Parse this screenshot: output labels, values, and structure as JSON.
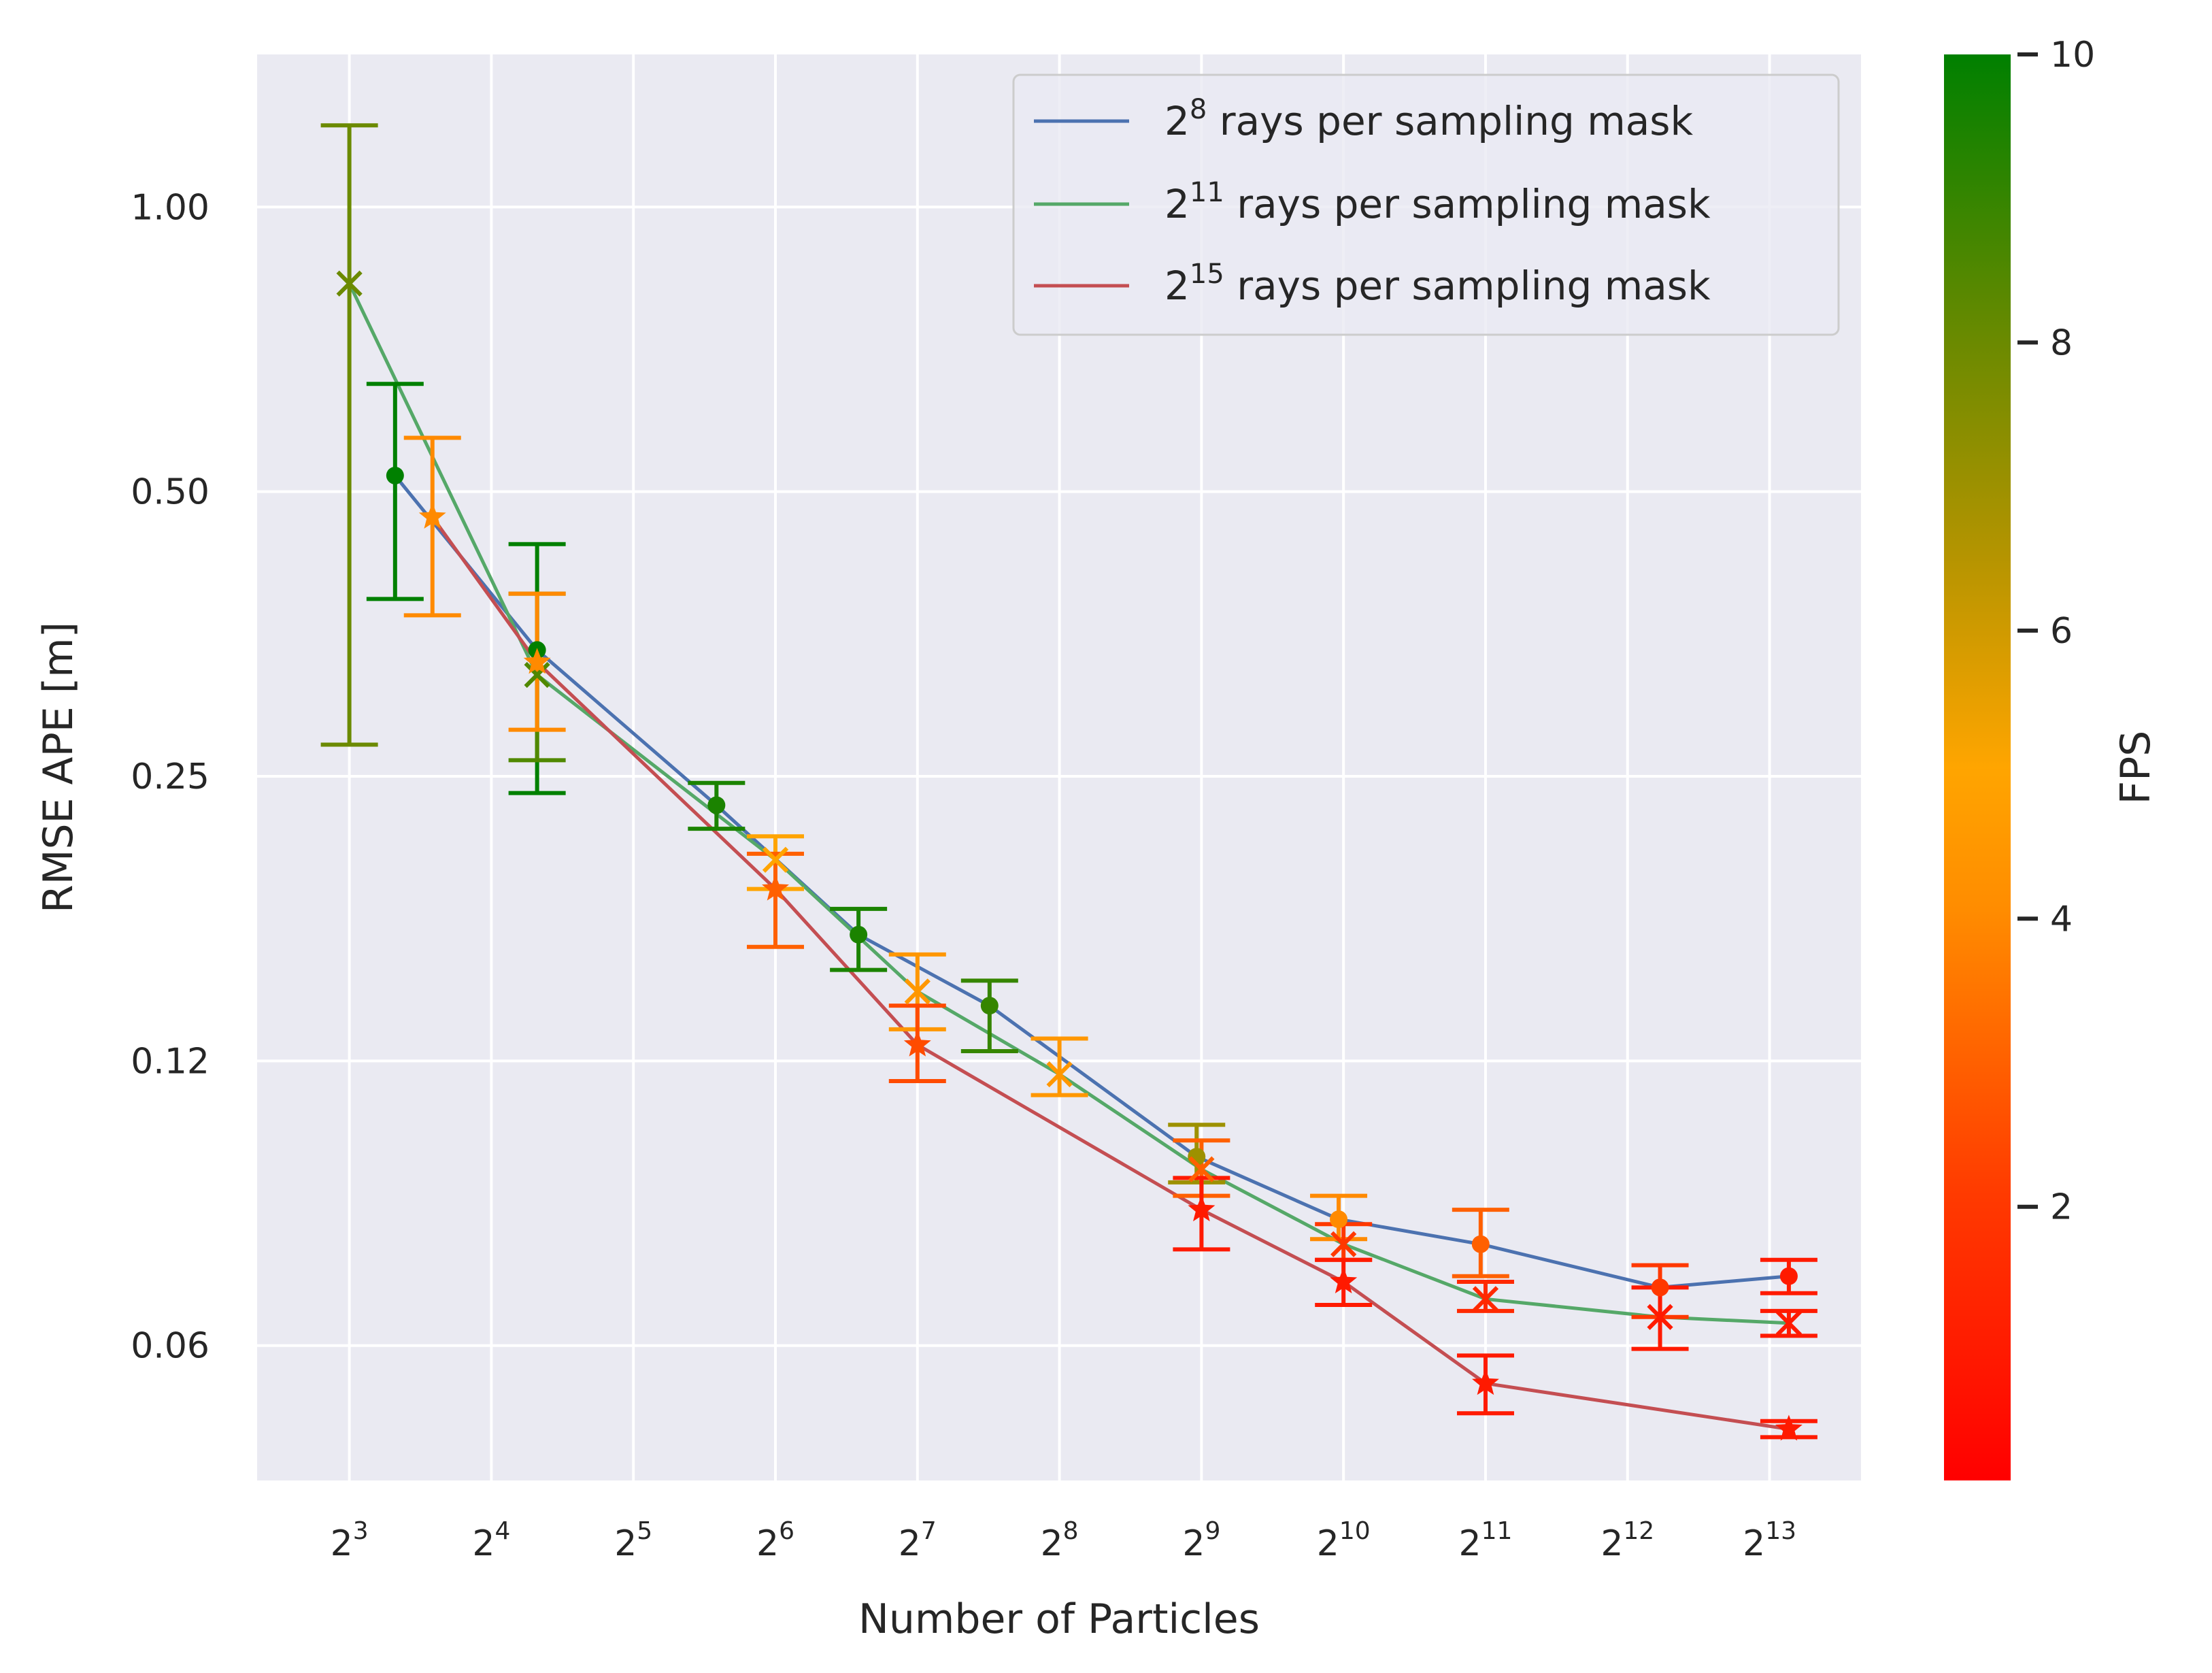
{
  "chart_data": {
    "type": "line",
    "title": "",
    "xlabel": "Number of Particles",
    "ylabel": "RMSE APE [m]",
    "x_scale": "log2",
    "y_scale": "log",
    "x_ticks": [
      {
        "base": "2",
        "exp": "3",
        "value": 8
      },
      {
        "base": "2",
        "exp": "4",
        "value": 16
      },
      {
        "base": "2",
        "exp": "5",
        "value": 32
      },
      {
        "base": "2",
        "exp": "6",
        "value": 64
      },
      {
        "base": "2",
        "exp": "7",
        "value": 128
      },
      {
        "base": "2",
        "exp": "8",
        "value": 256
      },
      {
        "base": "2",
        "exp": "9",
        "value": 512
      },
      {
        "base": "2",
        "exp": "10",
        "value": 1024
      },
      {
        "base": "2",
        "exp": "11",
        "value": 2048
      },
      {
        "base": "2",
        "exp": "12",
        "value": 4096
      },
      {
        "base": "2",
        "exp": "13",
        "value": 8192
      }
    ],
    "y_ticks": [
      {
        "label": "1.00",
        "value": 1.0
      },
      {
        "label": "0.50",
        "value": 0.5
      },
      {
        "label": "0.25",
        "value": 0.25
      },
      {
        "label": "0.12",
        "value": 0.125
      },
      {
        "label": "0.06",
        "value": 0.0625
      }
    ],
    "xlim": [
      5.1,
      12800
    ],
    "ylim": [
      0.045,
      1.45
    ],
    "grid": true,
    "legend_position": "top-right",
    "series": [
      {
        "name_base": "2",
        "name_exp": "8",
        "name_suffix": "  rays per sampling mask",
        "color": "#4c72b0",
        "marker": "dot",
        "x": [
          10,
          20,
          48,
          96,
          182,
          500,
          1000,
          2000,
          4800,
          9000
        ],
        "y": [
          0.52,
          0.34,
          0.233,
          0.17,
          0.143,
          0.099,
          0.085,
          0.08,
          0.072,
          0.074
        ],
        "yerr_low": [
          0.385,
          0.24,
          0.22,
          0.156,
          0.128,
          0.093,
          0.081,
          0.074,
          0.067,
          0.071
        ],
        "yerr_high": [
          0.65,
          0.44,
          0.246,
          0.181,
          0.152,
          0.107,
          0.09,
          0.087,
          0.076,
          0.077
        ],
        "fps": [
          10,
          10,
          9.5,
          9.5,
          9,
          7,
          4,
          3,
          2,
          1
        ]
      },
      {
        "name_base": "2",
        "name_exp": "11",
        "name_suffix": " rays per sampling mask",
        "color": "#55a868",
        "marker": "x",
        "x": [
          8,
          20,
          64,
          128,
          256,
          512,
          1024,
          2048,
          4800,
          9000
        ],
        "y": [
          0.83,
          0.32,
          0.204,
          0.148,
          0.121,
          0.096,
          0.08,
          0.07,
          0.067,
          0.066
        ],
        "yerr_low": [
          0.27,
          0.26,
          0.19,
          0.135,
          0.115,
          0.09,
          0.077,
          0.068,
          0.062,
          0.064
        ],
        "yerr_high": [
          1.22,
          0.39,
          0.216,
          0.162,
          0.132,
          0.103,
          0.084,
          0.073,
          0.072,
          0.068
        ],
        "fps": [
          8,
          8.5,
          5,
          4.5,
          4.5,
          3,
          2,
          1.5,
          1,
          1
        ]
      },
      {
        "name_base": "2",
        "name_exp": "15",
        "name_suffix": " rays per sampling mask",
        "color": "#c44e52",
        "marker": "star",
        "x": [
          12,
          20,
          64,
          128,
          512,
          1024,
          2048,
          9000
        ],
        "y": [
          0.47,
          0.33,
          0.19,
          0.13,
          0.087,
          0.073,
          0.057,
          0.051
        ],
        "yerr_low": [
          0.37,
          0.28,
          0.165,
          0.119,
          0.079,
          0.069,
          0.053,
          0.05
        ],
        "yerr_high": [
          0.57,
          0.39,
          0.207,
          0.143,
          0.094,
          0.077,
          0.061,
          0.052
        ],
        "fps": [
          4,
          4,
          3,
          2.5,
          1,
          1,
          1,
          1
        ]
      }
    ],
    "colorbar": {
      "label": "FPS",
      "range": [
        0.1,
        10
      ],
      "ticks": [
        "2",
        "4",
        "6",
        "8",
        "10"
      ],
      "tick_values": [
        2,
        4,
        6,
        8,
        10
      ],
      "colors": [
        "#ff0000",
        "#ff6a00",
        "#ffa500",
        "#808000",
        "#008000"
      ]
    }
  }
}
